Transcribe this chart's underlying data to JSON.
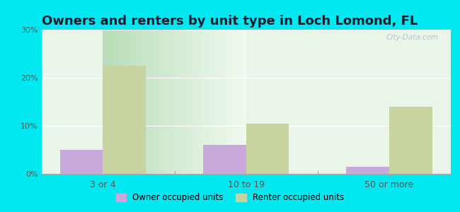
{
  "title": "Owners and renters by unit type in Loch Lomond, FL",
  "categories": [
    "3 or 4",
    "10 to 19",
    "50 or more"
  ],
  "owner_values": [
    5.0,
    6.0,
    1.5
  ],
  "renter_values": [
    22.5,
    10.5,
    14.0
  ],
  "owner_color": "#c9a8dc",
  "renter_color": "#c8d4a0",
  "ylim": [
    0,
    30
  ],
  "yticks": [
    0,
    10,
    20,
    30
  ],
  "ytick_labels": [
    "0%",
    "10%",
    "20%",
    "30%"
  ],
  "bg_left_color": "#d0ead0",
  "bg_right_color": "#f8fff8",
  "outer_background": "#00e8f0",
  "bar_width": 0.3,
  "legend_owner": "Owner occupied units",
  "legend_renter": "Renter occupied units",
  "title_fontsize": 13,
  "title_color": "#1a1a2e",
  "tick_color": "#555555",
  "watermark": "City-Data.com"
}
